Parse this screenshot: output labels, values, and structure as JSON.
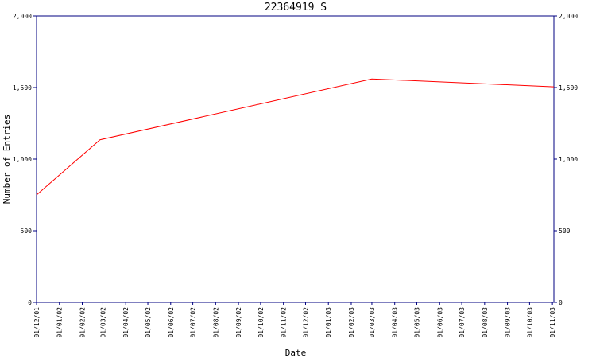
{
  "chart_data": {
    "type": "line",
    "title": "22364919 S",
    "xlabel": "Date",
    "ylabel": "Number of Entries",
    "ylim": [
      0,
      2000
    ],
    "yticks": [
      0,
      500,
      1000,
      1500,
      2000
    ],
    "ytick_labels": [
      "0",
      "500",
      "1,000",
      "1,500",
      "2,000"
    ],
    "xlim": [
      "2001-12-01",
      "2003-11-03"
    ],
    "xtick_dates": [
      "2001-12-01",
      "2002-01-01",
      "2002-02-01",
      "2002-03-01",
      "2002-04-01",
      "2002-05-01",
      "2002-06-01",
      "2002-07-01",
      "2002-08-01",
      "2002-09-01",
      "2002-10-01",
      "2002-11-01",
      "2002-12-01",
      "2003-01-01",
      "2003-02-01",
      "2003-03-01",
      "2003-04-01",
      "2003-05-01",
      "2003-06-01",
      "2003-07-01",
      "2003-08-01",
      "2003-09-01",
      "2003-10-01",
      "2003-11-01"
    ],
    "xtick_labels": [
      "01/12/01",
      "01/01/02",
      "01/02/02",
      "01/03/02",
      "01/04/02",
      "01/05/02",
      "01/06/02",
      "01/07/02",
      "01/08/02",
      "01/09/02",
      "01/10/02",
      "01/11/02",
      "01/12/02",
      "01/01/03",
      "01/02/03",
      "01/03/03",
      "01/04/03",
      "01/05/03",
      "01/06/03",
      "01/07/03",
      "01/08/03",
      "01/09/03",
      "01/10/03",
      "01/11/03"
    ],
    "series": [
      {
        "color": "#ff0000",
        "x": [
          "2001-12-01",
          "2002-02-25",
          "2003-03-01",
          "2003-11-03"
        ],
        "y": [
          750,
          1135,
          1560,
          1505
        ]
      }
    ],
    "axis_color": "#000080",
    "grid": false,
    "legend": "none"
  }
}
